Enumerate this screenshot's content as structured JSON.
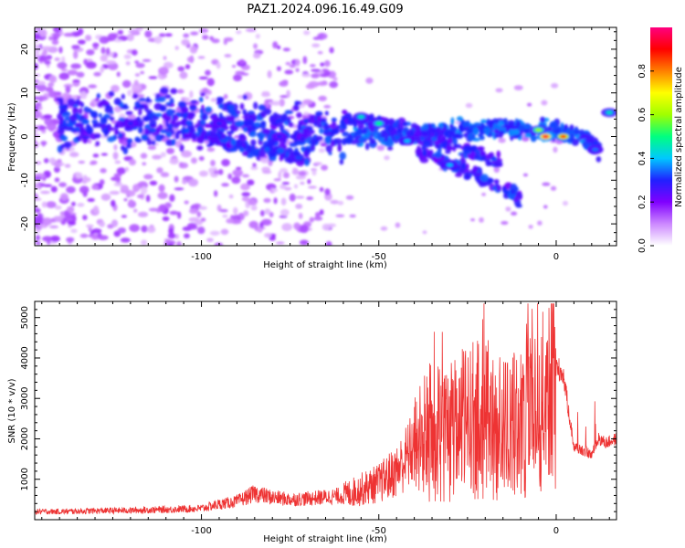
{
  "title": "PAZ1.2024.096.16.49.G09",
  "chart_data": [
    {
      "type": "heatmap",
      "xlabel": "Height of straight line (km)",
      "ylabel": "Frequency (Hz)",
      "xlim": [
        -147,
        17
      ],
      "ylim": [
        -25,
        25
      ],
      "x_ticks": [
        -100,
        -50,
        0
      ],
      "y_ticks": [
        -20,
        -10,
        0,
        10,
        20
      ],
      "colorbar": {
        "label": "Normalized spectral amplitude",
        "range": [
          0,
          1
        ],
        "ticks": [
          "0.0",
          "0.2",
          "0.4",
          "0.6",
          "0.8"
        ],
        "colors": [
          "#ffffff",
          "#cc88ff",
          "#8000ff",
          "#2020ff",
          "#00c8ff",
          "#00ff80",
          "#a0ff00",
          "#ffff00",
          "#ff8000",
          "#ff0000",
          "#ff0080"
        ]
      },
      "ridges": [
        {
          "x": [
            -140,
            -110,
            -80,
            -60,
            -40,
            -20,
            -5,
            0,
            8,
            12
          ],
          "y": [
            3,
            4,
            2,
            0,
            0,
            2,
            1.5,
            1,
            0,
            -3
          ]
        },
        {
          "x": [
            -60,
            -45,
            -30,
            -15
          ],
          "y": [
            4,
            2,
            -2,
            -6
          ]
        },
        {
          "x": [
            -40,
            -25,
            -10
          ],
          "y": [
            -3,
            -8,
            -14
          ]
        },
        {
          "x": [
            -105,
            -90,
            -70
          ],
          "y": [
            2,
            -2,
            -5
          ]
        }
      ],
      "peaks": [
        {
          "x": -3,
          "y": 0,
          "amp": 0.95
        },
        {
          "x": 2,
          "y": 0,
          "amp": 0.85
        },
        {
          "x": -5,
          "y": 1.5,
          "amp": 0.6
        },
        {
          "x": -55,
          "y": 4.5,
          "amp": 0.45
        },
        {
          "x": -50,
          "y": 3,
          "amp": 0.5
        },
        {
          "x": -42,
          "y": -1,
          "amp": 0.4
        },
        {
          "x": -30,
          "y": -6.5,
          "amp": 0.4
        },
        {
          "x": 15,
          "y": 5.5,
          "amp": 0.45
        },
        {
          "x": 11,
          "y": -3,
          "amp": 0.35
        },
        {
          "x": -78,
          "y": 0,
          "amp": 0.3
        },
        {
          "x": -95,
          "y": 3,
          "amp": 0.3
        },
        {
          "x": -120,
          "y": 3,
          "amp": 0.3
        }
      ]
    },
    {
      "type": "line",
      "xlabel": "Height of straight line (km)",
      "ylabel": "SNR (10 * v/v)",
      "xlim": [
        -147,
        17
      ],
      "ylim": [
        0,
        5400
      ],
      "x_ticks": [
        -100,
        -50,
        0
      ],
      "y_ticks": [
        1000,
        2000,
        3000,
        4000,
        5000
      ],
      "series": [
        {
          "color": "#ee3333",
          "x": [
            -147,
            -140,
            -130,
            -120,
            -110,
            -100,
            -95,
            -90,
            -85,
            -80,
            -75,
            -70,
            -65,
            -60,
            -55,
            -50,
            -45,
            -40,
            -35,
            -30,
            -25,
            -20,
            -15,
            -10,
            -8,
            -5,
            -3,
            -1,
            0,
            2,
            5,
            8,
            10,
            12,
            14,
            17
          ],
          "y": [
            200,
            200,
            220,
            230,
            250,
            280,
            380,
            450,
            650,
            550,
            500,
            520,
            560,
            600,
            750,
            900,
            1200,
            1800,
            2300,
            2200,
            2500,
            2600,
            2300,
            2400,
            3000,
            2600,
            3200,
            3900,
            3800,
            3600,
            1800,
            1700,
            1600,
            2000,
            1900,
            2000
          ]
        }
      ]
    }
  ]
}
